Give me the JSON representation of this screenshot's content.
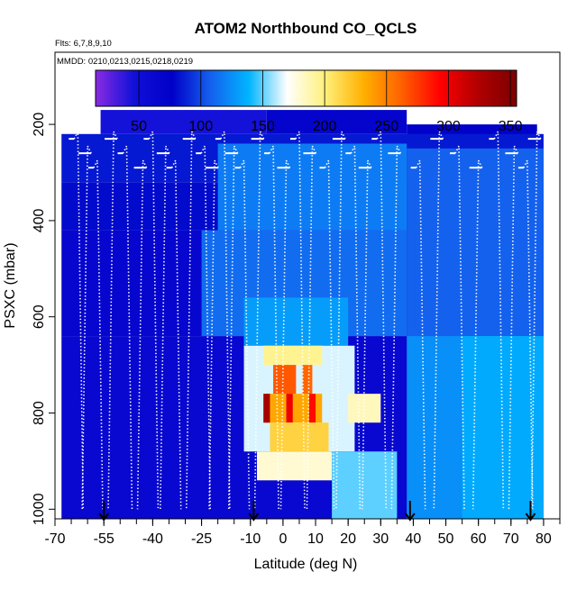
{
  "chart_data": {
    "type": "heatmap",
    "title": "ATOM2 Northbound CO_QCLS",
    "subtitle_flights": "Flts: 6,7,8,9,10",
    "subtitle_dates": "MMDD: 0210,0213,0215,0218,0219",
    "xlabel": "Latitude (deg N)",
    "ylabel": "PSXC (mbar)",
    "xlim": [
      -70,
      85
    ],
    "ylim": [
      1020,
      50
    ],
    "x_ticks": [
      -70,
      -55,
      -40,
      -25,
      -10,
      0,
      10,
      20,
      30,
      40,
      50,
      60,
      70,
      80
    ],
    "x_tick_labels": [
      "-70",
      "-55",
      "-40",
      "-25",
      "-10",
      "0",
      "10",
      "20",
      "30",
      "40",
      "50",
      "60",
      "70",
      "80"
    ],
    "y_ticks": [
      200,
      400,
      600,
      800,
      1000
    ],
    "y_tick_labels": [
      "200",
      "400",
      "600",
      "800",
      "1000"
    ],
    "colorbar": {
      "range": [
        15,
        355
      ],
      "ticks": [
        50,
        100,
        150,
        200,
        250,
        300,
        350
      ],
      "tick_labels": [
        "50",
        "100",
        "150",
        "200",
        "250",
        "300",
        "350"
      ],
      "colors": [
        "#8a2be2",
        "#1010d8",
        "#0000c8",
        "#1460ee",
        "#00b4ff",
        "#ffffff",
        "#fff07a",
        "#ffb000",
        "#ff6000",
        "#ff0000",
        "#b00000",
        "#7a0000"
      ]
    },
    "arrows_lat": [
      -55,
      -9,
      39,
      76
    ],
    "cells": [
      {
        "x0": -56,
        "x1": -5,
        "p0": 170,
        "p1": 220,
        "v": 45
      },
      {
        "x0": -5,
        "x1": 38,
        "p0": 170,
        "p1": 220,
        "v": 70
      },
      {
        "x0": 38,
        "x1": 78,
        "p0": 200,
        "p1": 260,
        "v": 75
      },
      {
        "x0": -68,
        "x1": 80,
        "p0": 220,
        "p1": 320,
        "v": 85
      },
      {
        "x0": -68,
        "x1": 80,
        "p0": 320,
        "p1": 420,
        "v": 80
      },
      {
        "x0": -68,
        "x1": 80,
        "p0": 420,
        "p1": 640,
        "v": 65
      },
      {
        "x0": -68,
        "x1": 80,
        "p0": 640,
        "p1": 1020,
        "v": 62
      },
      {
        "x0": -20,
        "x1": 38,
        "p0": 240,
        "p1": 420,
        "v": 118
      },
      {
        "x0": 38,
        "x1": 80,
        "p0": 250,
        "p1": 640,
        "v": 108
      },
      {
        "x0": 38,
        "x1": 80,
        "p0": 640,
        "p1": 1020,
        "v": 125
      },
      {
        "x0": 55,
        "x1": 80,
        "p0": 640,
        "p1": 1020,
        "v": 135
      },
      {
        "x0": -25,
        "x1": 38,
        "p0": 420,
        "p1": 640,
        "v": 112
      },
      {
        "x0": -12,
        "x1": 20,
        "p0": 560,
        "p1": 660,
        "v": 130
      },
      {
        "x0": -12,
        "x1": 22,
        "p0": 660,
        "p1": 880,
        "v": 165
      },
      {
        "x0": -8,
        "x1": 15,
        "p0": 880,
        "p1": 940,
        "v": 180
      },
      {
        "x0": -6,
        "x1": 12,
        "p0": 660,
        "p1": 700,
        "v": 195
      },
      {
        "x0": -3,
        "x1": 4,
        "p0": 700,
        "p1": 760,
        "v": 265
      },
      {
        "x0": 6,
        "x1": 9,
        "p0": 700,
        "p1": 760,
        "v": 260
      },
      {
        "x0": -6,
        "x1": 12,
        "p0": 760,
        "p1": 820,
        "v": 235
      },
      {
        "x0": -6,
        "x1": -4,
        "p0": 760,
        "p1": 820,
        "v": 330
      },
      {
        "x0": 1,
        "x1": 3,
        "p0": 760,
        "p1": 820,
        "v": 300
      },
      {
        "x0": 8,
        "x1": 10,
        "p0": 760,
        "p1": 820,
        "v": 290
      },
      {
        "x0": -4,
        "x1": 14,
        "p0": 820,
        "p1": 880,
        "v": 215
      },
      {
        "x0": 15,
        "x1": 35,
        "p0": 880,
        "p1": 1020,
        "v": 150
      },
      {
        "x0": 20,
        "x1": 30,
        "p0": 760,
        "p1": 820,
        "v": 185
      }
    ],
    "profiles_lat": [
      -63,
      -60,
      -57,
      -52,
      -48,
      -43,
      -40,
      -36,
      -33,
      -28,
      -24,
      -21,
      -18,
      -15,
      -12,
      -7,
      -3,
      1,
      5,
      9,
      14,
      18,
      22,
      26,
      30,
      35,
      42,
      48,
      54,
      60,
      66,
      71,
      75,
      78
    ]
  }
}
